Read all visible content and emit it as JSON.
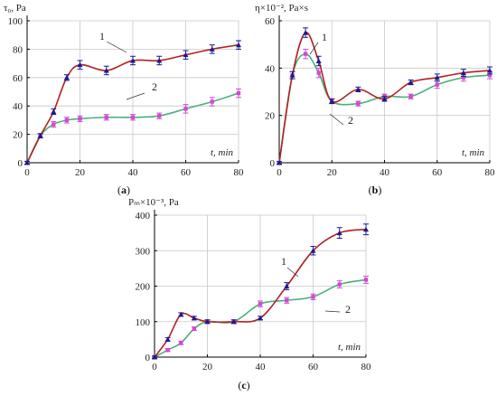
{
  "figure_labels": [
    "(a)",
    "(b)",
    "(c)"
  ],
  "colors": {
    "series1": "#b22222",
    "series2": "#4caf7a",
    "marker1": "#1a1a8c",
    "marker2": "#d24ad2",
    "grid": "#c8c8c8",
    "axis": "#000000"
  },
  "chart_data": [
    {
      "type": "line",
      "panel": "(a)",
      "ylabel": "τ₀, Pa",
      "xlabel": "t, min",
      "xlim": [
        0,
        80
      ],
      "ylim": [
        0,
        100
      ],
      "xticks": [
        0,
        20,
        40,
        60,
        80
      ],
      "yticks": [
        0,
        20,
        40,
        60,
        80,
        100
      ],
      "grid": true,
      "series": [
        {
          "name": "1",
          "x": [
            0,
            5,
            10,
            15,
            20,
            30,
            40,
            50,
            60,
            70,
            80
          ],
          "y": [
            0,
            19,
            36,
            60,
            69,
            65,
            72,
            72,
            76,
            80,
            83
          ],
          "err": [
            1,
            1.5,
            2,
            2,
            3,
            3,
            3,
            3,
            3,
            3,
            3
          ]
        },
        {
          "name": "2",
          "x": [
            0,
            5,
            10,
            15,
            20,
            30,
            40,
            50,
            60,
            70,
            80
          ],
          "y": [
            0,
            19,
            27,
            30,
            31,
            32,
            32,
            33,
            38,
            43,
            49
          ],
          "err": [
            1,
            1.5,
            2,
            2,
            2,
            2,
            2,
            2,
            3,
            3,
            3
          ]
        }
      ]
    },
    {
      "type": "line",
      "panel": "(b)",
      "ylabel": "η×10⁻², Pa×s",
      "xlabel": "t, min",
      "xlim": [
        0,
        80
      ],
      "ylim": [
        0,
        60
      ],
      "xticks": [
        0,
        20,
        40,
        60,
        80
      ],
      "yticks": [
        0,
        20,
        40,
        60
      ],
      "grid": true,
      "series": [
        {
          "name": "1",
          "x": [
            0,
            5,
            10,
            15,
            20,
            30,
            40,
            50,
            60,
            70,
            80
          ],
          "y": [
            0,
            37,
            55,
            43,
            26,
            31,
            27,
            34,
            36,
            38,
            39
          ],
          "err": [
            0.5,
            1.5,
            2,
            2,
            1,
            1,
            1,
            1,
            1.5,
            1.5,
            1.5
          ]
        },
        {
          "name": "2",
          "x": [
            0,
            5,
            10,
            15,
            20,
            30,
            40,
            50,
            60,
            70,
            80
          ],
          "y": [
            0,
            37,
            46,
            38,
            26,
            25,
            28,
            28,
            33,
            36,
            37
          ],
          "err": [
            0.5,
            1.5,
            2,
            2,
            1,
            1,
            1,
            1,
            1.5,
            1.5,
            1.5
          ]
        }
      ]
    },
    {
      "type": "line",
      "panel": "(c)",
      "ylabel": "Pₘ×10⁻³, Pa",
      "xlabel": "t, min",
      "xlim": [
        0,
        80
      ],
      "ylim": [
        0,
        400
      ],
      "xticks": [
        0,
        20,
        40,
        60,
        80
      ],
      "yticks": [
        0,
        100,
        200,
        300,
        400
      ],
      "grid": true,
      "series": [
        {
          "name": "1",
          "x": [
            0,
            5,
            10,
            15,
            20,
            30,
            40,
            50,
            60,
            70,
            80
          ],
          "y": [
            0,
            50,
            120,
            110,
            100,
            100,
            110,
            200,
            300,
            350,
            360
          ],
          "err": [
            3,
            5,
            5,
            5,
            5,
            5,
            5,
            10,
            12,
            15,
            15
          ]
        },
        {
          "name": "2",
          "x": [
            0,
            5,
            10,
            15,
            20,
            30,
            40,
            50,
            60,
            70,
            80
          ],
          "y": [
            0,
            20,
            40,
            80,
            100,
            100,
            150,
            160,
            170,
            205,
            218
          ],
          "err": [
            3,
            4,
            5,
            5,
            5,
            5,
            8,
            8,
            8,
            10,
            10
          ]
        }
      ]
    }
  ]
}
